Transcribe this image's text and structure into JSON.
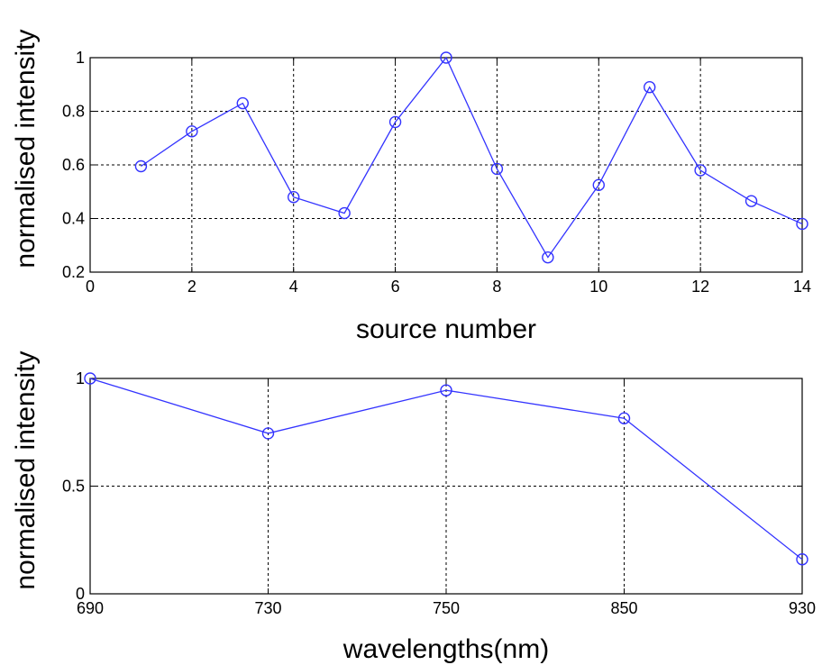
{
  "chart_data": [
    {
      "type": "line",
      "title": "",
      "xlabel": "source number",
      "ylabel": "normalised intensity",
      "xlim": [
        0,
        14
      ],
      "ylim": [
        0.2,
        1
      ],
      "x_ticks": [
        0,
        2,
        4,
        6,
        8,
        10,
        12,
        14
      ],
      "y_ticks": [
        0.2,
        0.4,
        0.6,
        0.8,
        1
      ],
      "x_tick_labels": [
        "0",
        "2",
        "4",
        "6",
        "8",
        "10",
        "12",
        "14"
      ],
      "y_tick_labels": [
        "0.2",
        "0.4",
        "0.6",
        "0.8",
        "1"
      ],
      "grid": true,
      "marker": "circle",
      "line_color": "#3333ff",
      "series": [
        {
          "x": [
            1,
            2,
            3,
            4,
            5,
            6,
            7,
            8,
            9,
            10,
            11,
            12,
            13,
            14
          ],
          "values": [
            0.595,
            0.725,
            0.83,
            0.48,
            0.42,
            0.76,
            1.0,
            0.585,
            0.255,
            0.525,
            0.89,
            0.58,
            0.465,
            0.38
          ]
        }
      ]
    },
    {
      "type": "line",
      "title": "",
      "xlabel": "wavelengths(nm)",
      "ylabel": "normalised intensity",
      "categories": [
        "690",
        "730",
        "750",
        "850",
        "930"
      ],
      "ylim": [
        0,
        1
      ],
      "y_ticks": [
        0,
        0.5,
        1
      ],
      "y_tick_labels": [
        "0",
        "0.5",
        "1"
      ],
      "grid": true,
      "marker": "circle",
      "line_color": "#3333ff",
      "series": [
        {
          "values": [
            1.0,
            0.745,
            0.945,
            0.815,
            0.16
          ]
        }
      ]
    }
  ]
}
